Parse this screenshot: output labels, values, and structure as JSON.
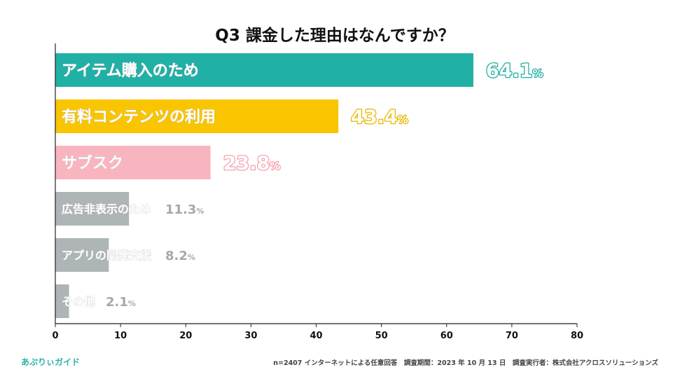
{
  "chart_data": {
    "type": "bar",
    "orientation": "horizontal",
    "title": "Q3 課金した理由はなんですか？",
    "xlim": [
      0,
      80
    ],
    "xticks": [
      "0",
      "10",
      "20",
      "30",
      "40",
      "50",
      "60",
      "70",
      "80"
    ],
    "xlabel": "",
    "ylabel": "",
    "grid": false,
    "categories": [
      "アイテム購入のため",
      "有料コンテンツの利用",
      "サブスク",
      "広告非表示のため",
      "アプリの開発支援",
      "その他"
    ],
    "values": [
      64.1,
      43.4,
      23.8,
      11.3,
      8.2,
      2.1
    ],
    "value_numbers": [
      "64.1",
      "43.4",
      "23.8",
      "11.3",
      "8.2",
      "2.1"
    ],
    "value_unit": "%",
    "colors": [
      "#21b0a5",
      "#f9c400",
      "#f9b5bf",
      "#aeb5b6",
      "#aeb5b6",
      "#aeb5b6"
    ],
    "label_colors": [
      "#21b0a5",
      "#e8b800",
      "#f3a3b0",
      "#a3aaab",
      "#a3aaab",
      "#a3aaab"
    ]
  },
  "footer": {
    "brand": "あぷりぃガイド",
    "note": "n=2407 インターネットによる任意回答　調査期間：2023 年 10 月 13 日　調査実行者：株式会社アクロスソリューションズ"
  }
}
